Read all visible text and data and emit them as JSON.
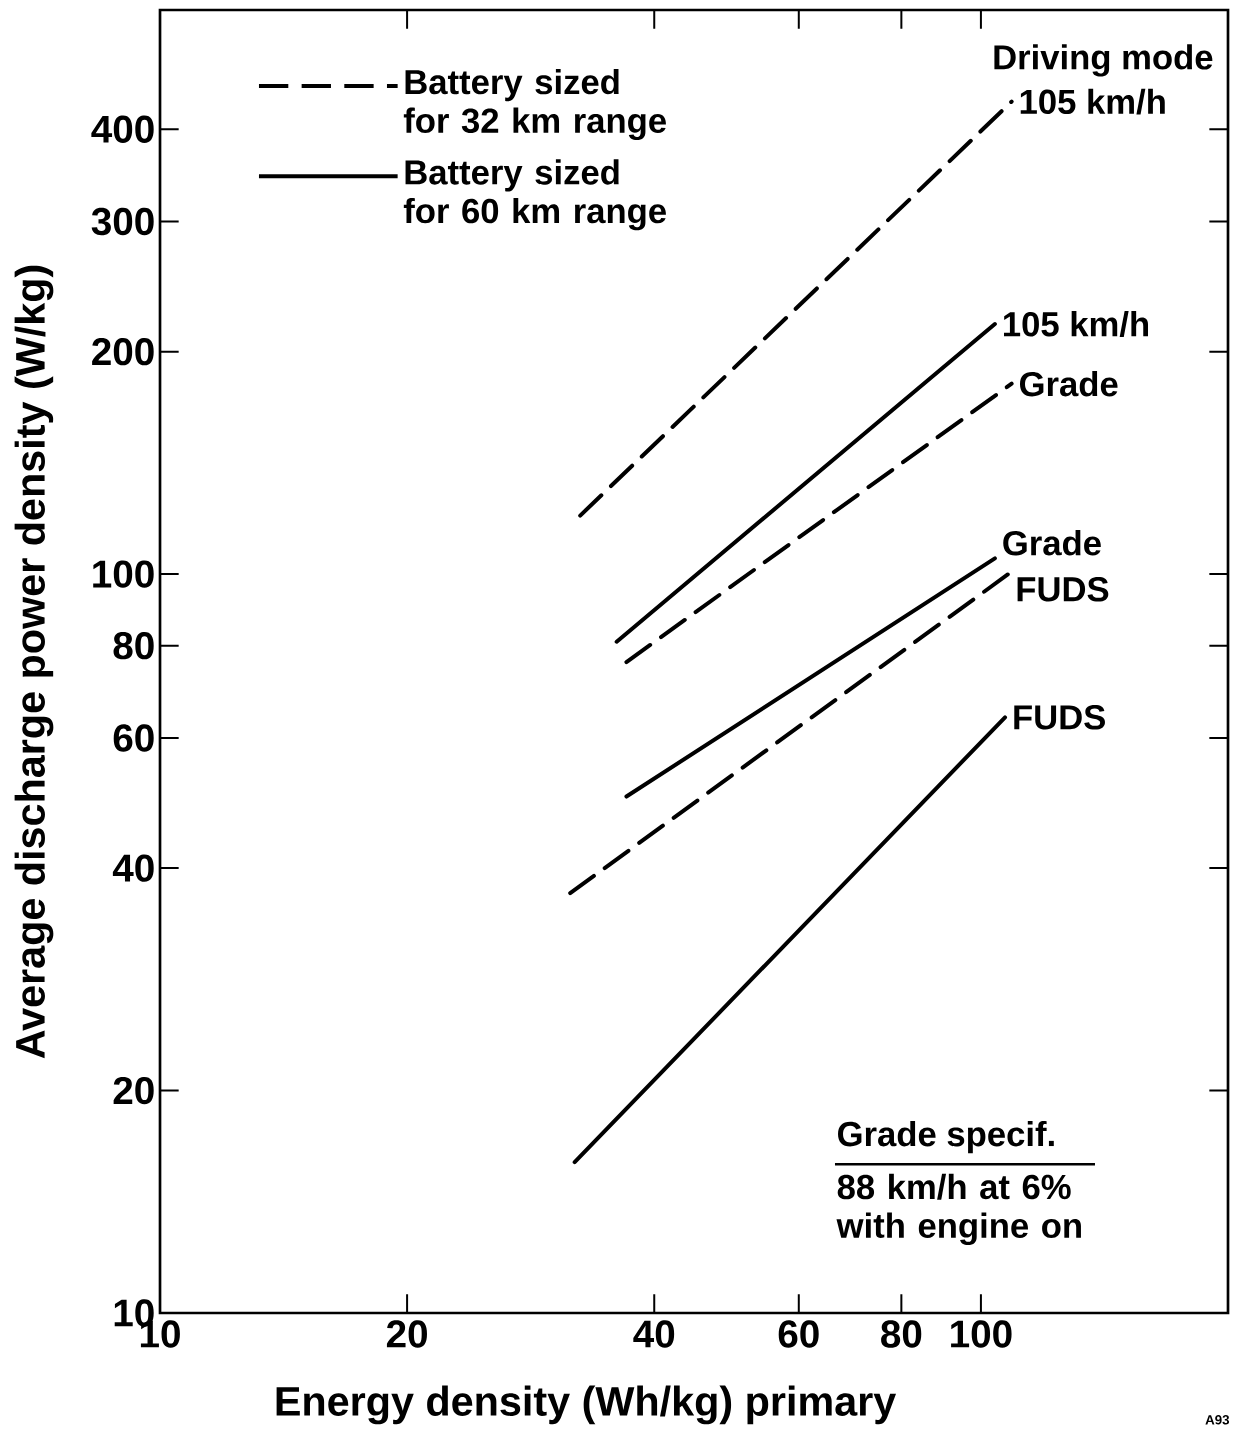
{
  "chart_data": {
    "type": "line",
    "xlabel": "Energy density   (Wh/kg) primary",
    "ylabel": "Average discharge power density (W/kg)",
    "log": "xy",
    "xlim": [
      10,
      200
    ],
    "ylim": [
      10,
      580
    ],
    "xticks": [
      10,
      20,
      40,
      60,
      80,
      100
    ],
    "yticks": [
      10,
      20,
      40,
      60,
      80,
      100,
      200,
      300,
      400
    ],
    "legend": "top left",
    "marker": "none",
    "series": [
      {
        "name": "Battery sized for 32 km range",
        "color": "#000000",
        "line_style": "dashed",
        "x": [
          32.5,
          109
        ],
        "values": [
          120,
          436
        ]
      },
      {
        "name": "Battery sized for 60 km range",
        "color": "#000000",
        "line_style": "solid",
        "x": [
          36,
          104
        ],
        "values": [
          81,
          218
        ]
      },
      {
        "color": "#000000",
        "line_style": "dashed",
        "x": [
          37,
          109
        ],
        "values": [
          76,
          181
        ]
      },
      {
        "color": "#000000",
        "line_style": "solid",
        "x": [
          37,
          104
        ],
        "values": [
          50,
          105
        ]
      },
      {
        "color": "#000000",
        "line_style": "dashed",
        "x": [
          31.6,
          108
        ],
        "values": [
          37,
          100
        ]
      },
      {
        "color": "#000000",
        "line_style": "solid",
        "x": [
          32,
          107
        ],
        "values": [
          16,
          64
        ]
      }
    ],
    "annotations": [
      "Driving mode",
      {
        "text": "105 km/h",
        "x": 109,
        "y": 436
      },
      {
        "text": "105 km/h",
        "x": 104,
        "y": 218
      },
      {
        "text": "Grade",
        "x": 109,
        "y": 181
      },
      {
        "text": "Grade",
        "x": 104,
        "y": 105
      },
      {
        "text": "FUDS",
        "x": 108,
        "y": 100
      },
      {
        "text": "FUDS",
        "x": 107,
        "y": 64
      },
      "Grade specif.",
      "88 km/h at 6% with engine on",
      "A93"
    ]
  }
}
